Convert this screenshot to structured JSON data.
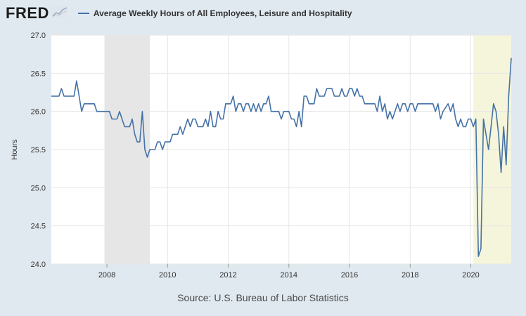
{
  "logo": {
    "text": "FRED"
  },
  "legend": {
    "series_name": "Average Weekly Hours of All Employees, Leisure and Hospitality",
    "color": "#4572a7"
  },
  "source": "Source: U.S. Bureau of Labor Statistics",
  "chart_data": {
    "type": "line",
    "title": "",
    "xlabel": "",
    "ylabel": "Hours",
    "ylim": [
      24.0,
      27.0
    ],
    "xlim": [
      "2006-03",
      "2021-05"
    ],
    "yticks": [
      "24.0",
      "24.5",
      "25.0",
      "25.5",
      "26.0",
      "26.5",
      "27.0"
    ],
    "xticks": [
      "2008",
      "2010",
      "2012",
      "2014",
      "2016",
      "2018",
      "2020"
    ],
    "grid": true,
    "recession_shading": [
      {
        "start": "2007-12",
        "end": "2009-06",
        "color": "#e6e6e6"
      },
      {
        "start": "2020-02",
        "end": "2021-05",
        "color": "#f5f5dc"
      }
    ],
    "series": [
      {
        "name": "Average Weekly Hours of All Employees, Leisure and Hospitality",
        "color": "#4572a7",
        "points": [
          [
            "2006-03",
            26.2
          ],
          [
            "2006-06",
            26.2
          ],
          [
            "2006-07",
            26.3
          ],
          [
            "2006-08",
            26.2
          ],
          [
            "2006-12",
            26.2
          ],
          [
            "2007-01",
            26.4
          ],
          [
            "2007-02",
            26.2
          ],
          [
            "2007-03",
            26.0
          ],
          [
            "2007-04",
            26.1
          ],
          [
            "2007-08",
            26.1
          ],
          [
            "2007-09",
            26.0
          ],
          [
            "2008-02",
            26.0
          ],
          [
            "2008-03",
            25.9
          ],
          [
            "2008-05",
            25.9
          ],
          [
            "2008-06",
            26.0
          ],
          [
            "2008-08",
            25.8
          ],
          [
            "2008-10",
            25.8
          ],
          [
            "2008-11",
            25.9
          ],
          [
            "2008-12",
            25.7
          ],
          [
            "2009-01",
            25.6
          ],
          [
            "2009-02",
            25.6
          ],
          [
            "2009-03",
            26.0
          ],
          [
            "2009-04",
            25.5
          ],
          [
            "2009-05",
            25.4
          ],
          [
            "2009-06",
            25.5
          ],
          [
            "2009-08",
            25.5
          ],
          [
            "2009-09",
            25.6
          ],
          [
            "2009-10",
            25.6
          ],
          [
            "2009-11",
            25.5
          ],
          [
            "2009-12",
            25.6
          ],
          [
            "2010-02",
            25.6
          ],
          [
            "2010-03",
            25.7
          ],
          [
            "2010-05",
            25.7
          ],
          [
            "2010-06",
            25.8
          ],
          [
            "2010-07",
            25.7
          ],
          [
            "2010-08",
            25.8
          ],
          [
            "2010-09",
            25.9
          ],
          [
            "2010-10",
            25.8
          ],
          [
            "2010-11",
            25.9
          ],
          [
            "2010-12",
            25.9
          ],
          [
            "2011-01",
            25.8
          ],
          [
            "2011-03",
            25.8
          ],
          [
            "2011-04",
            25.9
          ],
          [
            "2011-05",
            25.8
          ],
          [
            "2011-06",
            26.0
          ],
          [
            "2011-07",
            25.8
          ],
          [
            "2011-08",
            25.8
          ],
          [
            "2011-09",
            26.0
          ],
          [
            "2011-10",
            25.9
          ],
          [
            "2011-11",
            25.9
          ],
          [
            "2011-12",
            26.1
          ],
          [
            "2012-02",
            26.1
          ],
          [
            "2012-03",
            26.2
          ],
          [
            "2012-04",
            26.0
          ],
          [
            "2012-05",
            26.1
          ],
          [
            "2012-06",
            26.1
          ],
          [
            "2012-07",
            26.0
          ],
          [
            "2012-08",
            26.1
          ],
          [
            "2012-09",
            26.1
          ],
          [
            "2012-10",
            26.0
          ],
          [
            "2012-11",
            26.1
          ],
          [
            "2012-12",
            26.0
          ],
          [
            "2013-01",
            26.1
          ],
          [
            "2013-02",
            26.0
          ],
          [
            "2013-03",
            26.1
          ],
          [
            "2013-04",
            26.1
          ],
          [
            "2013-05",
            26.2
          ],
          [
            "2013-06",
            26.0
          ],
          [
            "2013-09",
            26.0
          ],
          [
            "2013-10",
            25.9
          ],
          [
            "2013-11",
            26.0
          ],
          [
            "2014-01",
            26.0
          ],
          [
            "2014-02",
            25.9
          ],
          [
            "2014-03",
            25.9
          ],
          [
            "2014-04",
            25.8
          ],
          [
            "2014-05",
            26.0
          ],
          [
            "2014-06",
            25.8
          ],
          [
            "2014-07",
            26.2
          ],
          [
            "2014-08",
            26.2
          ],
          [
            "2014-09",
            26.1
          ],
          [
            "2014-11",
            26.1
          ],
          [
            "2014-12",
            26.3
          ],
          [
            "2015-01",
            26.2
          ],
          [
            "2015-03",
            26.2
          ],
          [
            "2015-04",
            26.3
          ],
          [
            "2015-06",
            26.3
          ],
          [
            "2015-07",
            26.2
          ],
          [
            "2015-09",
            26.2
          ],
          [
            "2015-10",
            26.3
          ],
          [
            "2015-11",
            26.2
          ],
          [
            "2015-12",
            26.2
          ],
          [
            "2016-01",
            26.3
          ],
          [
            "2016-02",
            26.3
          ],
          [
            "2016-03",
            26.2
          ],
          [
            "2016-04",
            26.3
          ],
          [
            "2016-05",
            26.2
          ],
          [
            "2016-06",
            26.2
          ],
          [
            "2016-07",
            26.1
          ],
          [
            "2016-11",
            26.1
          ],
          [
            "2016-12",
            26.0
          ],
          [
            "2017-01",
            26.2
          ],
          [
            "2017-02",
            26.0
          ],
          [
            "2017-03",
            26.1
          ],
          [
            "2017-04",
            25.9
          ],
          [
            "2017-05",
            26.0
          ],
          [
            "2017-06",
            25.9
          ],
          [
            "2017-08",
            26.1
          ],
          [
            "2017-09",
            26.0
          ],
          [
            "2017-10",
            26.1
          ],
          [
            "2017-11",
            26.1
          ],
          [
            "2017-12",
            26.0
          ],
          [
            "2018-01",
            26.1
          ],
          [
            "2018-02",
            26.1
          ],
          [
            "2018-03",
            26.0
          ],
          [
            "2018-04",
            26.1
          ],
          [
            "2018-10",
            26.1
          ],
          [
            "2018-11",
            26.0
          ],
          [
            "2018-12",
            26.1
          ],
          [
            "2019-01",
            25.9
          ],
          [
            "2019-02",
            26.0
          ],
          [
            "2019-04",
            26.1
          ],
          [
            "2019-05",
            26.0
          ],
          [
            "2019-06",
            26.1
          ],
          [
            "2019-07",
            25.9
          ],
          [
            "2019-08",
            25.8
          ],
          [
            "2019-09",
            25.9
          ],
          [
            "2019-10",
            25.8
          ],
          [
            "2019-11",
            25.8
          ],
          [
            "2019-12",
            25.9
          ],
          [
            "2020-01",
            25.9
          ],
          [
            "2020-02",
            25.8
          ],
          [
            "2020-03",
            25.9
          ],
          [
            "2020-04",
            24.1
          ],
          [
            "2020-05",
            24.2
          ],
          [
            "2020-06",
            25.9
          ],
          [
            "2020-07",
            25.7
          ],
          [
            "2020-08",
            25.5
          ],
          [
            "2020-09",
            25.8
          ],
          [
            "2020-10",
            26.1
          ],
          [
            "2020-11",
            26.0
          ],
          [
            "2020-12",
            25.7
          ],
          [
            "2021-01",
            25.2
          ],
          [
            "2021-02",
            25.8
          ],
          [
            "2021-03",
            25.3
          ],
          [
            "2021-04",
            26.2
          ],
          [
            "2021-05",
            26.7
          ]
        ]
      }
    ]
  }
}
